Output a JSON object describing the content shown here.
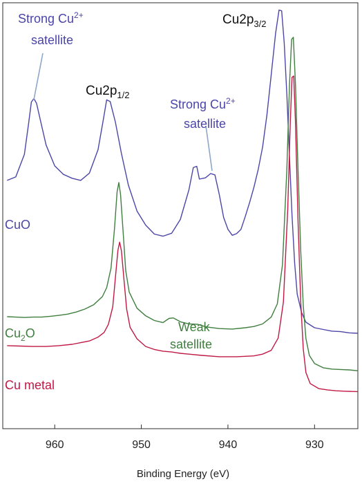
{
  "chart_data": {
    "type": "line",
    "title": "",
    "xlabel": "Binding Energy (eV)",
    "ylabel": "",
    "xlim": [
      966,
      925
    ],
    "x_reversed": true,
    "ylim": [
      0,
      100
    ],
    "grid": false,
    "x_ticks": [
      960,
      950,
      940,
      930
    ],
    "series": [
      {
        "name": "CuO",
        "color": "#4b45a8",
        "points": [
          [
            965.5,
            58.3
          ],
          [
            964.5,
            59.1
          ],
          [
            963.5,
            64.4
          ],
          [
            963.0,
            71.9
          ],
          [
            962.7,
            76.7
          ],
          [
            962.4,
            77.5
          ],
          [
            962.1,
            76.4
          ],
          [
            961.6,
            71.9
          ],
          [
            961.0,
            66.6
          ],
          [
            960.0,
            61.7
          ],
          [
            959.0,
            59.7
          ],
          [
            958.0,
            58.8
          ],
          [
            957.0,
            58.3
          ],
          [
            956.0,
            60.0
          ],
          [
            955.0,
            65.5
          ],
          [
            954.4,
            72.4
          ],
          [
            954.0,
            77.2
          ],
          [
            953.6,
            76.8
          ],
          [
            953.0,
            72.0
          ],
          [
            952.3,
            64.6
          ],
          [
            951.5,
            57.2
          ],
          [
            950.5,
            51.1
          ],
          [
            949.5,
            47.8
          ],
          [
            948.5,
            45.7
          ],
          [
            947.5,
            45.2
          ],
          [
            946.5,
            45.9
          ],
          [
            945.5,
            49.1
          ],
          [
            944.5,
            56.1
          ],
          [
            944.0,
            61.3
          ],
          [
            943.6,
            61.6
          ],
          [
            943.3,
            58.6
          ],
          [
            942.6,
            58.9
          ],
          [
            942.0,
            59.9
          ],
          [
            941.5,
            59.6
          ],
          [
            941.0,
            55.0
          ],
          [
            940.5,
            49.6
          ],
          [
            940.0,
            46.8
          ],
          [
            939.5,
            45.4
          ],
          [
            939.0,
            45.8
          ],
          [
            938.5,
            46.8
          ],
          [
            938.0,
            49.8
          ],
          [
            937.5,
            53.1
          ],
          [
            937.0,
            56.7
          ],
          [
            936.5,
            60.9
          ],
          [
            936.0,
            66.1
          ],
          [
            935.5,
            73.7
          ],
          [
            935.0,
            83.1
          ],
          [
            934.5,
            92.8
          ],
          [
            934.1,
            98.3
          ],
          [
            933.8,
            98.1
          ],
          [
            933.5,
            90.6
          ],
          [
            933.2,
            78.5
          ],
          [
            932.9,
            63.9
          ],
          [
            932.6,
            50.1
          ],
          [
            932.3,
            38.9
          ],
          [
            932.0,
            31.6
          ],
          [
            931.5,
            27.3
          ],
          [
            931.0,
            25.0
          ],
          [
            930.0,
            23.7
          ],
          [
            929.0,
            23.3
          ],
          [
            928.0,
            22.9
          ],
          [
            927.0,
            22.8
          ],
          [
            926.0,
            22.5
          ],
          [
            925.0,
            22.4
          ]
        ]
      },
      {
        "name": "Cu₂O",
        "color": "#3f7e3e",
        "points": [
          [
            965.5,
            26.3
          ],
          [
            964.5,
            26.2
          ],
          [
            963.5,
            26.1
          ],
          [
            962.5,
            26.2
          ],
          [
            961.5,
            26.2
          ],
          [
            960.5,
            26.4
          ],
          [
            959.5,
            26.6
          ],
          [
            958.5,
            26.9
          ],
          [
            957.5,
            27.4
          ],
          [
            956.5,
            28.1
          ],
          [
            955.5,
            29.1
          ],
          [
            954.5,
            31.0
          ],
          [
            954.0,
            33.1
          ],
          [
            953.5,
            37.7
          ],
          [
            953.1,
            46.9
          ],
          [
            952.8,
            55.6
          ],
          [
            952.6,
            57.8
          ],
          [
            952.4,
            55.0
          ],
          [
            952.1,
            46.0
          ],
          [
            951.8,
            37.1
          ],
          [
            951.4,
            32.1
          ],
          [
            950.5,
            28.3
          ],
          [
            949.5,
            26.5
          ],
          [
            948.5,
            25.4
          ],
          [
            947.5,
            24.9
          ],
          [
            946.8,
            25.9
          ],
          [
            946.3,
            26.0
          ],
          [
            945.5,
            25.1
          ],
          [
            944.5,
            24.6
          ],
          [
            943.5,
            24.5
          ],
          [
            942.5,
            23.9
          ],
          [
            941.0,
            23.5
          ],
          [
            939.5,
            23.4
          ],
          [
            938.0,
            23.7
          ],
          [
            937.0,
            24.0
          ],
          [
            936.0,
            24.6
          ],
          [
            935.0,
            26.2
          ],
          [
            934.3,
            29.3
          ],
          [
            933.7,
            38.5
          ],
          [
            933.2,
            60.8
          ],
          [
            932.9,
            80.6
          ],
          [
            932.65,
            91.4
          ],
          [
            932.45,
            91.9
          ],
          [
            932.2,
            80.9
          ],
          [
            931.9,
            60.3
          ],
          [
            931.6,
            41.8
          ],
          [
            931.3,
            28.9
          ],
          [
            931.0,
            21.2
          ],
          [
            930.6,
            17.2
          ],
          [
            930.0,
            15.3
          ],
          [
            929.0,
            14.3
          ],
          [
            928.0,
            14.0
          ],
          [
            927.0,
            13.9
          ],
          [
            926.0,
            13.8
          ],
          [
            925.0,
            13.6
          ]
        ]
      },
      {
        "name": "Cu metal",
        "color": "#c01845",
        "points": [
          [
            965.5,
            19.5
          ],
          [
            964.0,
            19.4
          ],
          [
            962.5,
            19.3
          ],
          [
            961.0,
            19.3
          ],
          [
            959.5,
            19.5
          ],
          [
            958.0,
            19.8
          ],
          [
            957.0,
            20.2
          ],
          [
            956.0,
            20.6
          ],
          [
            955.0,
            21.5
          ],
          [
            954.3,
            22.6
          ],
          [
            953.8,
            24.5
          ],
          [
            953.3,
            28.6
          ],
          [
            953.0,
            35.4
          ],
          [
            952.7,
            41.9
          ],
          [
            952.5,
            43.8
          ],
          [
            952.3,
            41.7
          ],
          [
            952.0,
            34.9
          ],
          [
            951.7,
            28.1
          ],
          [
            951.3,
            23.8
          ],
          [
            950.5,
            21.1
          ],
          [
            949.5,
            19.3
          ],
          [
            948.5,
            18.6
          ],
          [
            947.5,
            18.2
          ],
          [
            946.5,
            18.0
          ],
          [
            945.5,
            17.7
          ],
          [
            944.5,
            17.5
          ],
          [
            943.0,
            17.2
          ],
          [
            941.0,
            16.9
          ],
          [
            939.0,
            16.9
          ],
          [
            937.0,
            17.1
          ],
          [
            936.0,
            17.5
          ],
          [
            935.0,
            18.4
          ],
          [
            934.2,
            21.3
          ],
          [
            933.6,
            29.7
          ],
          [
            933.1,
            51.5
          ],
          [
            932.8,
            72.0
          ],
          [
            932.6,
            82.5
          ],
          [
            932.4,
            82.8
          ],
          [
            932.2,
            71.9
          ],
          [
            931.9,
            48.3
          ],
          [
            931.6,
            29.8
          ],
          [
            931.3,
            18.7
          ],
          [
            931.0,
            13.2
          ],
          [
            930.5,
            10.6
          ],
          [
            929.5,
            9.4
          ],
          [
            928.5,
            9.1
          ],
          [
            927.5,
            8.9
          ],
          [
            926.5,
            8.8
          ],
          [
            925.0,
            8.7
          ]
        ]
      }
    ],
    "labels": {
      "cu2p32": {
        "base": "Cu2p",
        "sub": "3/2"
      },
      "cu2p12": {
        "base": "Cu2p",
        "sub": "1/2"
      },
      "strong_sat_1": {
        "line1_base": "Strong Cu",
        "line1_sup": "2+",
        "line2": "satellite"
      },
      "strong_sat_2": {
        "line1_base": "Strong Cu",
        "line1_sup": "2+",
        "line2": "satellite"
      },
      "weak_sat": {
        "line1": "Weak",
        "line2": "satellite"
      },
      "series_cuo": "CuO",
      "series_cu2o": {
        "base": "Cu",
        "sub": "2",
        "tail": "O"
      },
      "series_cumetal": "Cu metal"
    }
  }
}
